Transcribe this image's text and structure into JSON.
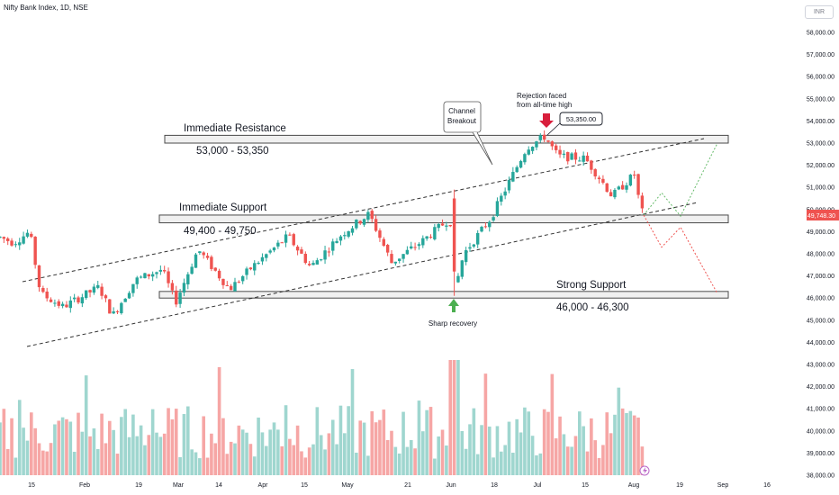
{
  "header": {
    "title": "Nifty Bank Index, 1D, NSE",
    "currency": "INR"
  },
  "chart_data": {
    "type": "candlestick",
    "ylim": [
      38000,
      59000
    ],
    "y_ticks": [
      "58,000.00",
      "57,000.00",
      "56,000.00",
      "55,000.00",
      "54,000.00",
      "53,000.00",
      "52,000.00",
      "51,000.00",
      "50,000.00",
      "49,000.00",
      "48,000.00",
      "47,000.00",
      "46,000.00",
      "45,000.00",
      "44,000.00",
      "43,000.00",
      "42,000.00",
      "41,000.00",
      "40,000.00",
      "39,000.00",
      "38,000.00"
    ],
    "x_ticks": [
      "15",
      "Feb",
      "19",
      "Mar",
      "14",
      "Apr",
      "15",
      "May",
      "21",
      "Jun",
      "18",
      "Jul",
      "15",
      "Aug",
      "19",
      "Sep",
      "16"
    ],
    "last_price": "49,748.30",
    "colors": {
      "up": "#26a69a",
      "down": "#ef5350",
      "vol_up": "#9fd6cf",
      "vol_down": "#f6a6a5",
      "zone_fill": "#f0f0f0",
      "zone_border": "#4a4a4a",
      "arrow_down": "#d81e3c",
      "arrow_up": "#4caf50"
    },
    "zones": [
      {
        "label": "Immediate Resistance",
        "range": "53,000 - 53,350",
        "low": 53000,
        "high": 53350
      },
      {
        "label": "Immediate Support",
        "range": "49,400 - 49,750",
        "low": 49400,
        "high": 49750
      },
      {
        "label": "Strong Support",
        "range": "46,000 - 46,300",
        "low": 46000,
        "high": 46300
      }
    ],
    "annotations": {
      "channel_breakout": "Channel\nBreakout",
      "rejection": "Rejection faced\nfrom all-time high",
      "peak_label": "53,350.00",
      "sharp_recovery": "Sharp recovery"
    },
    "channel": {
      "upper": [
        [
          46700,
          53100
        ]
      ],
      "lower": [
        [
          44200,
          50200
        ]
      ]
    },
    "scenario_paths": {
      "bull": [
        49750,
        50750,
        49700,
        53000
      ],
      "bear": [
        49750,
        48300,
        49200,
        46200
      ]
    }
  }
}
